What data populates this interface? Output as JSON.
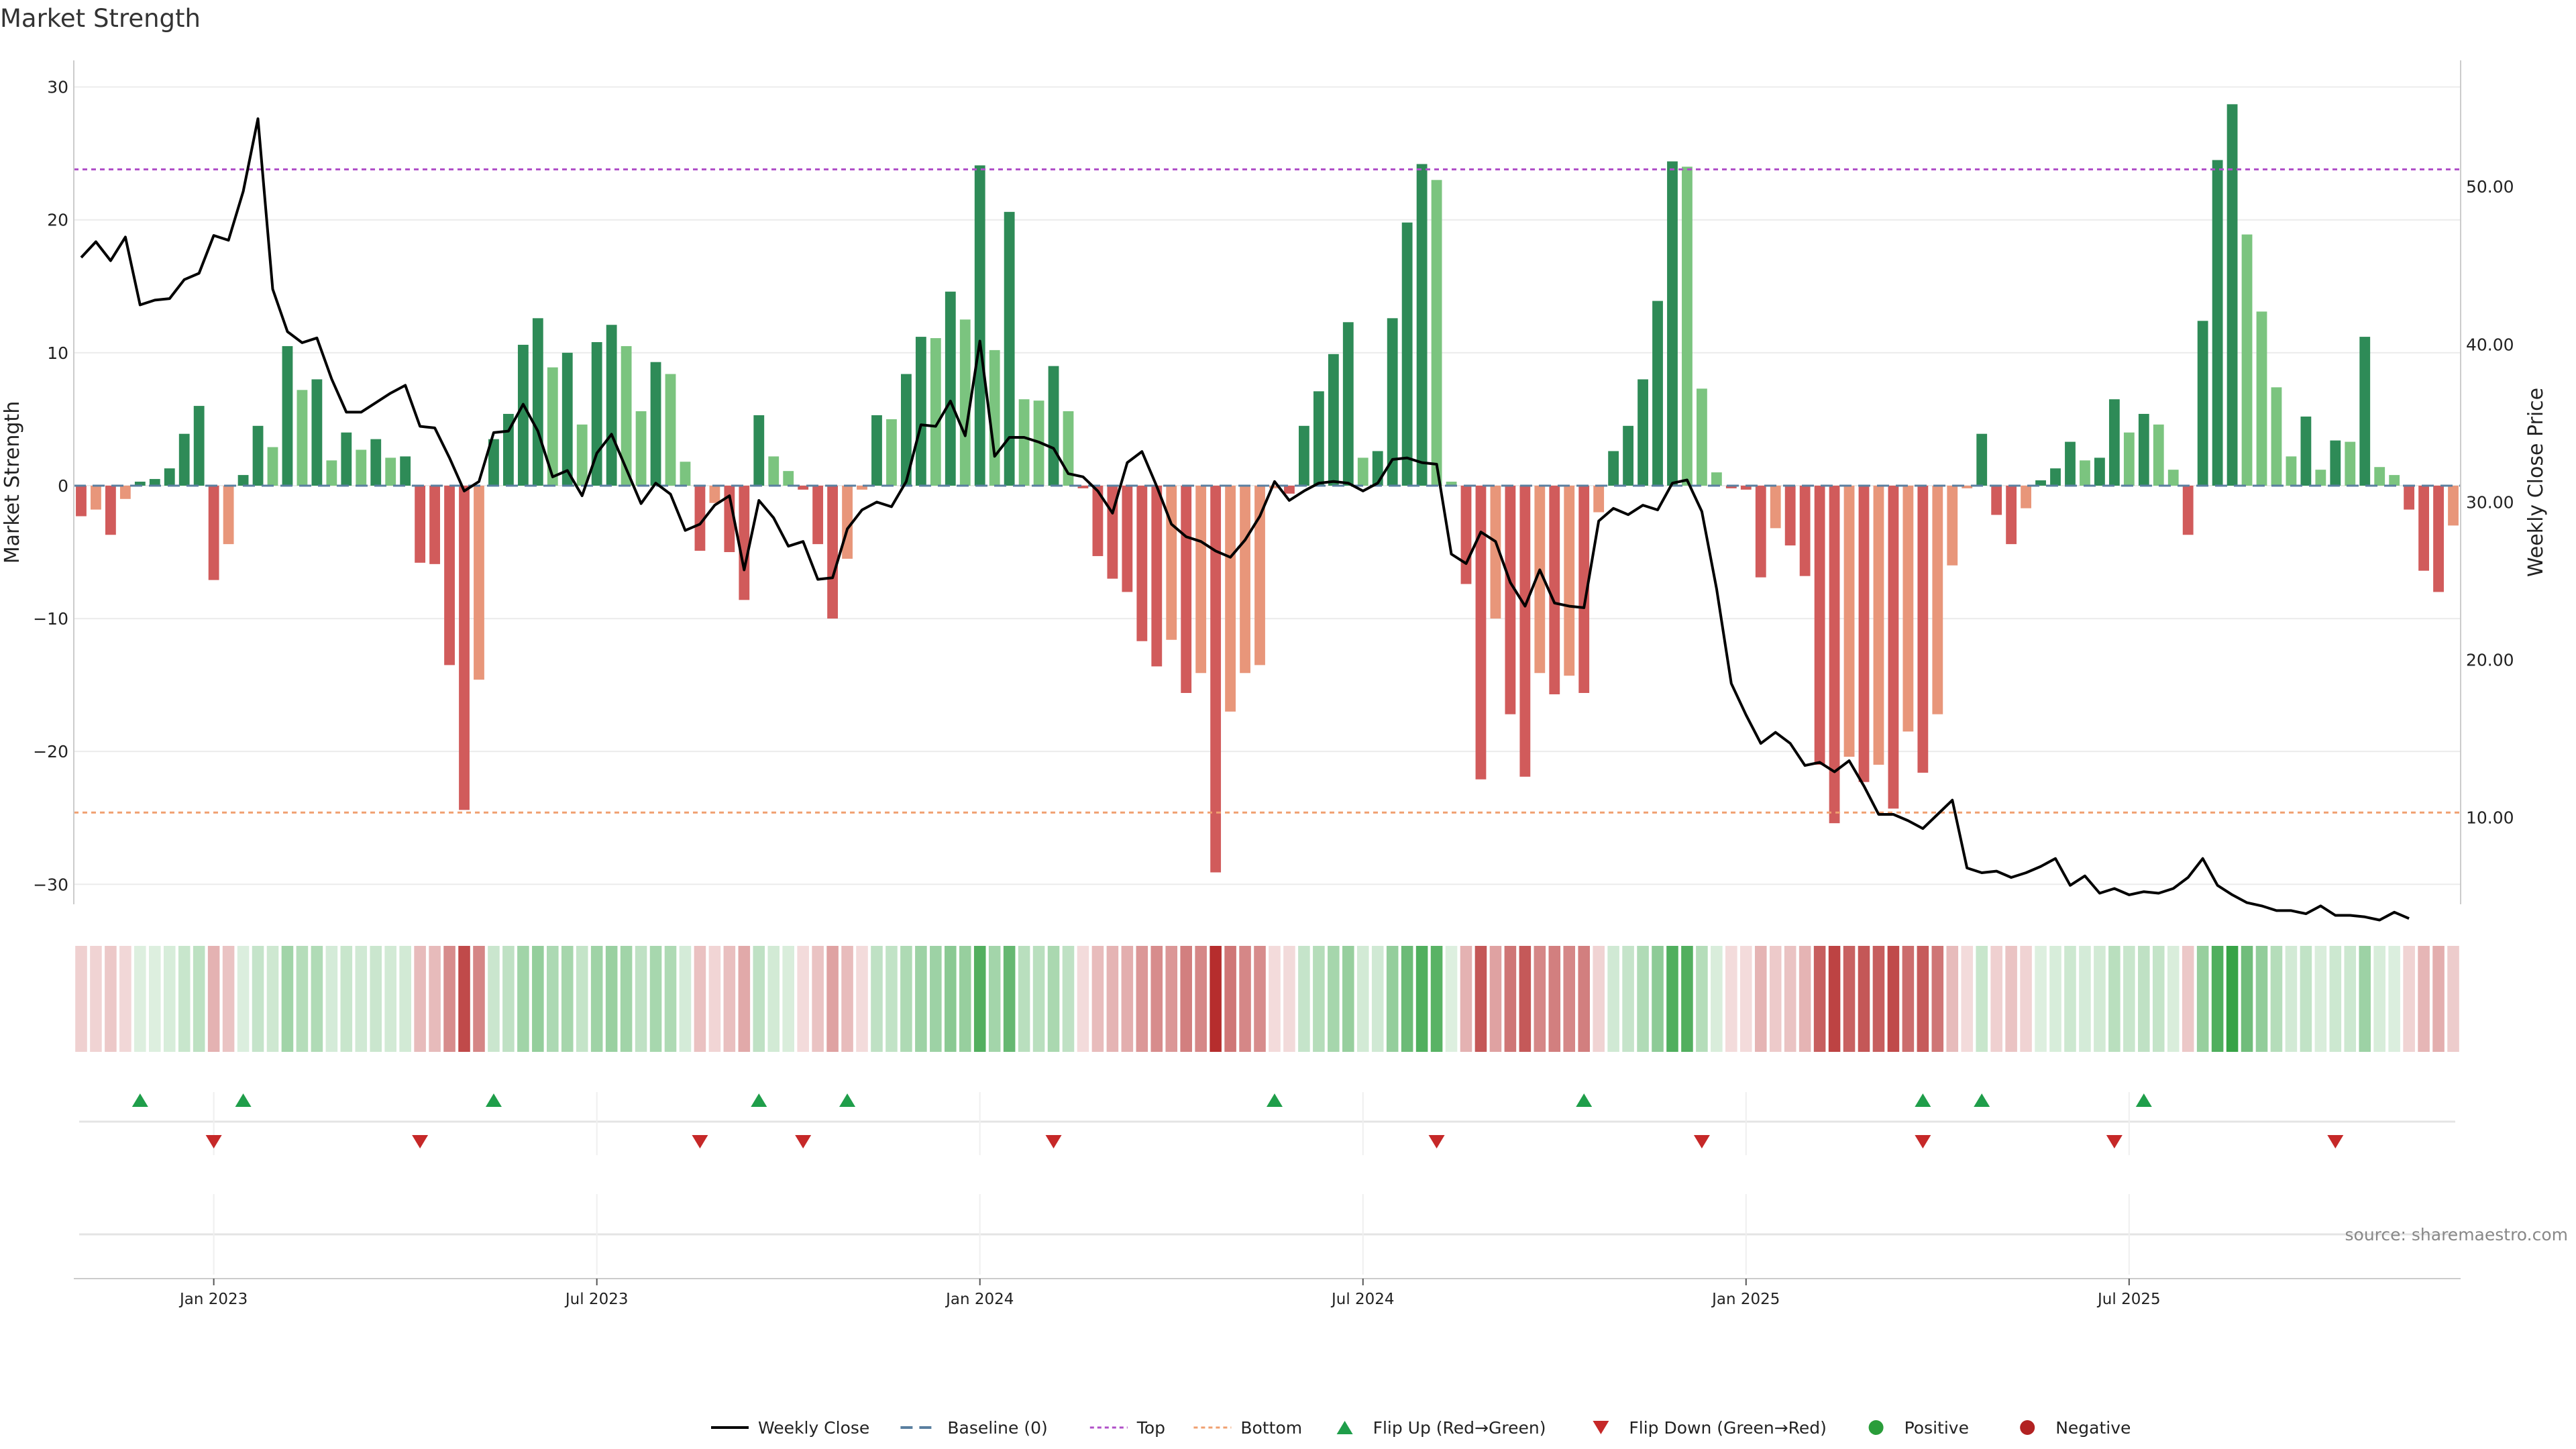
{
  "chart_data": {
    "type": "bar",
    "title": "Market Strength",
    "ylabel": "Market Strength",
    "y2label": "Weekly Close Price",
    "ylim": [
      -31.5,
      32
    ],
    "y2lim": [
      4.5,
      58
    ],
    "y_ticks": [
      -30,
      -20,
      -10,
      0,
      10,
      20,
      30
    ],
    "y_tick_labels": [
      "−30",
      "−20",
      "−10",
      "0",
      "10",
      "20",
      "30"
    ],
    "y2_ticks": [
      10,
      20,
      30,
      40,
      50
    ],
    "y2_tick_labels": [
      "10.00",
      "20.00",
      "30.00",
      "40.00",
      "50.00"
    ],
    "x_period": "weekly, 2022-10-28 to 2025-10-31",
    "x_ticks": [
      {
        "index": 9,
        "label": "Jan 2023"
      },
      {
        "index": 35,
        "label": "Jul 2023"
      },
      {
        "index": 61,
        "label": "Jan 2024"
      },
      {
        "index": 87,
        "label": "Jul 2024"
      },
      {
        "index": 113,
        "label": "Jan 2025"
      },
      {
        "index": 139,
        "label": "Jul 2025"
      }
    ],
    "top_line": 23.8,
    "bottom_line": -24.6,
    "strength": [
      -2.3,
      -1.8,
      -3.7,
      -1,
      0.3,
      0.5,
      1.3,
      3.9,
      6,
      -7.1,
      -4.4,
      0.8,
      4.5,
      2.9,
      10.5,
      7.2,
      8,
      1.9,
      4,
      2.7,
      3.5,
      2.1,
      2.2,
      -5.8,
      -5.9,
      -13.5,
      -24.4,
      -14.6,
      3.5,
      5.4,
      10.6,
      12.6,
      8.9,
      10,
      4.6,
      10.8,
      12.1,
      10.5,
      5.6,
      9.3,
      8.4,
      1.8,
      -4.9,
      -1.3,
      -5,
      -8.6,
      5.3,
      2.2,
      1.1,
      -0.3,
      -4.4,
      -10,
      -5.5,
      -0.3,
      5.3,
      5,
      8.4,
      11.2,
      11.1,
      14.6,
      12.5,
      24.1,
      10.2,
      20.6,
      6.5,
      6.4,
      9,
      5.6,
      -0.2,
      -5.3,
      -7,
      -8,
      -11.7,
      -13.6,
      -11.6,
      -15.6,
      -14.1,
      -29.1,
      -17,
      -14.1,
      -13.5,
      -0.2,
      -0.6,
      4.5,
      7.1,
      9.9,
      12.3,
      2.1,
      2.6,
      12.6,
      19.8,
      24.2,
      23,
      0.3,
      -7.4,
      -22.1,
      -10,
      -17.2,
      -21.9,
      -14.1,
      -15.7,
      -14.3,
      -15.6,
      -2,
      2.6,
      4.5,
      8,
      13.9,
      24.4,
      24,
      7.3,
      1,
      -0.2,
      -0.3,
      -6.9,
      -3.2,
      -4.5,
      -6.8,
      -21,
      -25.4,
      -20.4,
      -22.3,
      -21,
      -24.3,
      -18.5,
      -21.6,
      -17.2,
      -6,
      -0.2,
      3.9,
      -2.2,
      -4.4,
      -1.7,
      0.4,
      1.3,
      3.3,
      1.9,
      2.1,
      6.5,
      4,
      5.4,
      4.6,
      1.2,
      -3.7,
      12.4,
      24.5,
      28.7,
      18.9,
      13.1,
      7.4,
      2.2,
      5.2,
      1.2,
      3.4,
      3.3,
      11.2,
      1.4,
      0.8,
      -1.8,
      -6.4,
      -8,
      -3
    ],
    "weekly_close": [
      45.5,
      46.5,
      45.3,
      46.8,
      42.5,
      42.8,
      42.9,
      44.1,
      44.5,
      46.9,
      46.6,
      49.7,
      54.3,
      43.5,
      40.8,
      40.1,
      40.4,
      37.8,
      35.7,
      35.7,
      36.3,
      36.9,
      37.4,
      34.8,
      34.7,
      32.8,
      30.7,
      31.3,
      34.4,
      34.5,
      36.2,
      34.5,
      31.6,
      32,
      30.4,
      33.1,
      34.3,
      32.1,
      29.9,
      31.2,
      30.5,
      28.2,
      28.6,
      29.8,
      30.4,
      25.7,
      30.1,
      29,
      27.2,
      27.5,
      25.1,
      25.2,
      28.3,
      29.5,
      30,
      29.7,
      31.3,
      34.9,
      34.8,
      36.4,
      34.2,
      40.2,
      32.9,
      34.1,
      34.1,
      33.8,
      33.4,
      31.8,
      31.6,
      30.7,
      29.3,
      32.5,
      33.2,
      31,
      28.6,
      27.8,
      27.5,
      26.9,
      26.5,
      27.6,
      29.1,
      31.3,
      30.1,
      30.7,
      31.2,
      31.3,
      31.2,
      30.7,
      31.2,
      32.7,
      32.8,
      32.5,
      32.4,
      26.7,
      26.1,
      28.1,
      27.5,
      24.9,
      23.4,
      25.7,
      23.6,
      23.4,
      23.3,
      28.8,
      29.6,
      29.2,
      29.8,
      29.5,
      31.2,
      31.4,
      29.4,
      24.5,
      18.5,
      16.5,
      14.7,
      15.4,
      14.7,
      13.3,
      13.5,
      12.9,
      13.6,
      12,
      10.2,
      10.2,
      9.8,
      9.3,
      10.2,
      11.1,
      6.8,
      6.5,
      6.6,
      6.2,
      6.5,
      6.9,
      7.4,
      5.7,
      6.3,
      5.2,
      5.5,
      5.1,
      5.3,
      5.2,
      5.5,
      6.2,
      7.4,
      5.7,
      5.1,
      4.6,
      4.4,
      4.1,
      4.1,
      3.9,
      4.4,
      3.8,
      3.8,
      3.7,
      3.5,
      4,
      3.6
    ],
    "flip_up_indices": [
      4,
      11,
      28,
      46,
      52,
      81,
      102,
      125,
      129,
      140
    ],
    "flip_down_indices": [
      9,
      23,
      42,
      49,
      66,
      92,
      110,
      125,
      138,
      153
    ],
    "colors": {
      "pos_strong": "#2e8b57",
      "pos_weak": "#7bc47f",
      "neg_strong": "#d15b5b",
      "neg_weak": "#e8967a",
      "line": "#000000",
      "baseline": "#5a7fa0",
      "top": "#b050c8",
      "bottom": "#f0a070",
      "flip_up": "#1f9e4a",
      "flip_down": "#c62828",
      "positive": "#2a9d3a",
      "negative": "#b22222",
      "grid": "#ececec"
    },
    "source": "source: sharemaestro.com",
    "legend": [
      {
        "label": "Weekly Close",
        "symbol": "line"
      },
      {
        "label": "Baseline (0)",
        "symbol": "dash"
      },
      {
        "label": "Top",
        "symbol": "dot-purple"
      },
      {
        "label": "Bottom",
        "symbol": "dot-orange"
      },
      {
        "label": "Flip Up (Red→Green)",
        "symbol": "tri-up"
      },
      {
        "label": "Flip Down (Green→Red)",
        "symbol": "tri-down"
      },
      {
        "label": "Positive",
        "symbol": "circle-green"
      },
      {
        "label": "Negative",
        "symbol": "circle-red"
      }
    ]
  }
}
